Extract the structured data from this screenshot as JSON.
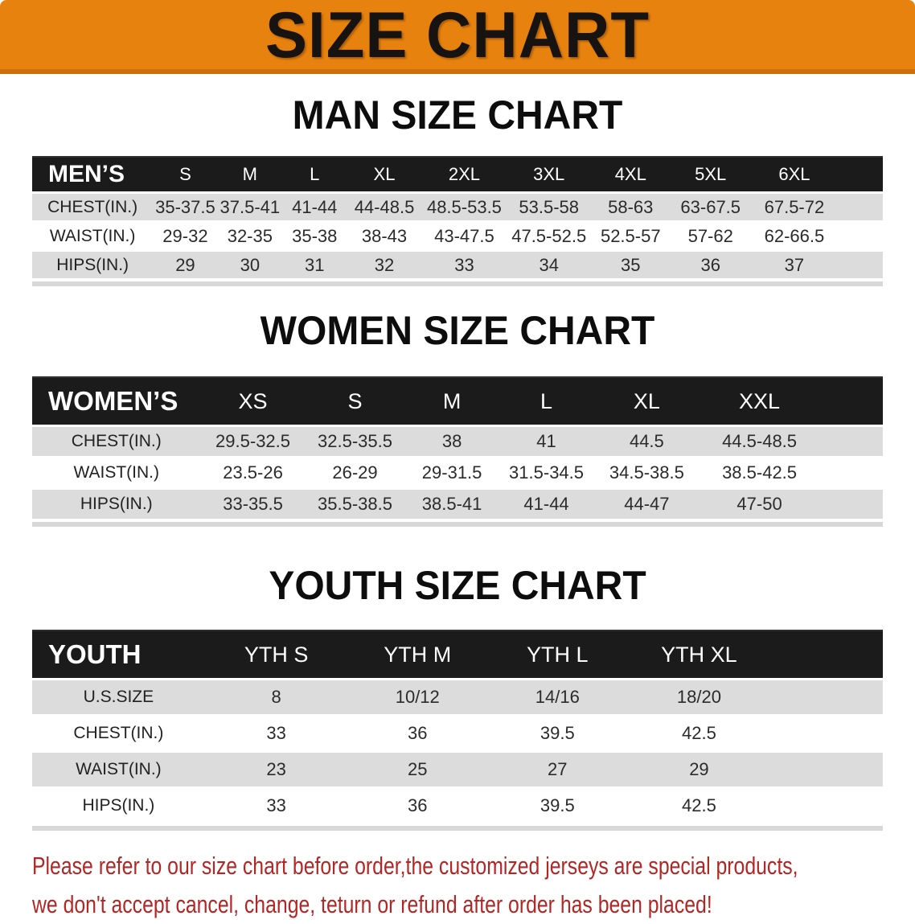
{
  "banner": {
    "title": "SIZE CHART"
  },
  "colors": {
    "banner_bg": "#E8820E",
    "banner_border": "#C96F0E",
    "header_bar_bg": "#1B1B1B",
    "shaded_row_bg": "#DCDCDC",
    "footnote_red": "#B22725"
  },
  "sections": [
    {
      "id": "men",
      "heading": "MAN SIZE CHART",
      "table": {
        "corner_label": "MEN’S",
        "columns": [
          "S",
          "M",
          "L",
          "XL",
          "2XL",
          "3XL",
          "4XL",
          "5XL",
          "6XL"
        ],
        "rows": [
          {
            "label": "CHEST(IN.)",
            "values": [
              "35-37.5",
              "37.5-41",
              "41-44",
              "44-48.5",
              "48.5-53.5",
              "53.5-58",
              "58-63",
              "63-67.5",
              "67.5-72"
            ]
          },
          {
            "label": "WAIST(IN.)",
            "values": [
              "29-32",
              "32-35",
              "35-38",
              "38-43",
              "43-47.5",
              "47.5-52.5",
              "52.5-57",
              "57-62",
              "62-66.5"
            ]
          },
          {
            "label": "HIPS(IN.)",
            "values": [
              "29",
              "30",
              "31",
              "32",
              "33",
              "34",
              "35",
              "36",
              "37"
            ]
          }
        ]
      }
    },
    {
      "id": "women",
      "heading": "WOMEN SIZE CHART",
      "table": {
        "corner_label": "WOMEN’S",
        "columns": [
          "XS",
          "S",
          "M",
          "L",
          "XL",
          "XXL"
        ],
        "rows": [
          {
            "label": "CHEST(IN.)",
            "values": [
              "29.5-32.5",
              "32.5-35.5",
              "38",
              "41",
              "44.5",
              "44.5-48.5"
            ]
          },
          {
            "label": "WAIST(IN.)",
            "values": [
              "23.5-26",
              "26-29",
              "29-31.5",
              "31.5-34.5",
              "34.5-38.5",
              "38.5-42.5"
            ]
          },
          {
            "label": "HIPS(IN.)",
            "values": [
              "33-35.5",
              "35.5-38.5",
              "38.5-41",
              "41-44",
              "44-47",
              "47-50"
            ]
          }
        ]
      }
    },
    {
      "id": "youth",
      "heading": "YOUTH SIZE CHART",
      "table": {
        "corner_label": "YOUTH",
        "columns": [
          "YTH S",
          "YTH M",
          "YTH L",
          "YTH XL"
        ],
        "rows": [
          {
            "label": "U.S.SIZE",
            "values": [
              "8",
              "10/12",
              "14/16",
              "18/20"
            ]
          },
          {
            "label": "CHEST(IN.)",
            "values": [
              "33",
              "36",
              "39.5",
              "42.5"
            ]
          },
          {
            "label": "WAIST(IN.)",
            "values": [
              "23",
              "25",
              "27",
              "29"
            ]
          },
          {
            "label": "HIPS(IN.)",
            "values": [
              "33",
              "36",
              "39.5",
              "42.5"
            ]
          }
        ]
      }
    }
  ],
  "footnote": {
    "line1": "Please refer to our size chart before order,the customized jerseys are special products,",
    "line2": "we don't accept cancel, change, teturn or refund after order has been placed!"
  }
}
